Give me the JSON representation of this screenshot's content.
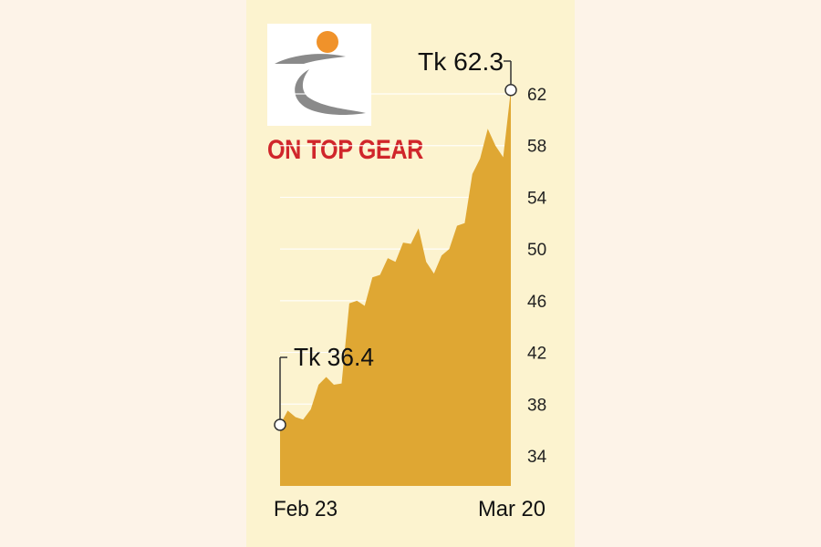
{
  "headline": "ON TOP GEAR",
  "colors": {
    "area": "#dfa733",
    "panel": "#fcf3cf",
    "headline": "#d0262b",
    "logo_orange": "#f0922a",
    "logo_grey": "#8a8a8a"
  },
  "logo": {
    "icon": "company-logo"
  },
  "chart_data": {
    "type": "area",
    "title": "",
    "xlabel": "",
    "ylabel": "",
    "ylim": [
      32,
      63.5
    ],
    "yticks": [
      34,
      38,
      42,
      46,
      50,
      54,
      58,
      62
    ],
    "x_start_label": "Feb 23",
    "x_end_label": "Mar 20",
    "values": [
      36.4,
      37.5,
      37.0,
      36.8,
      37.6,
      39.5,
      40.1,
      39.5,
      39.6,
      45.8,
      46.0,
      45.6,
      47.8,
      48.0,
      49.3,
      49.0,
      50.5,
      50.4,
      51.6,
      49.0,
      48.1,
      49.5,
      50.0,
      51.8,
      52.0,
      55.8,
      57.0,
      59.3,
      58.0,
      57.1,
      62.3
    ],
    "start_annotation": "Tk 36.4",
    "end_annotation": "Tk 62.3"
  }
}
